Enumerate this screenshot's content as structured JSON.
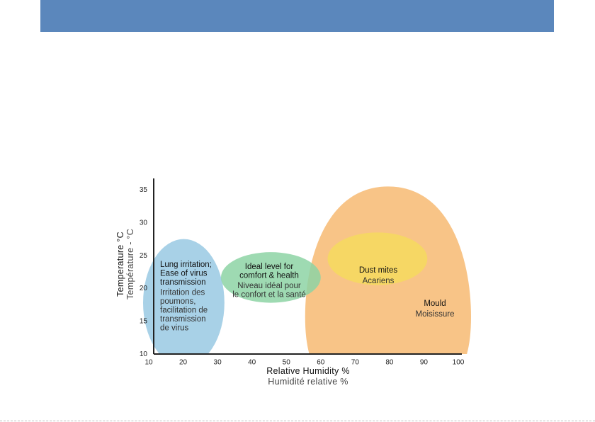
{
  "chart_data": {
    "type": "scatter",
    "title": "",
    "xlabel": "Relative Humidity %",
    "xlabel_fr": "Humidité relative %",
    "ylabel": "Temperature °C",
    "ylabel_fr": "Température - °C",
    "xlim": [
      10,
      100
    ],
    "ylim": [
      10,
      35
    ],
    "x_ticks": [
      10,
      20,
      30,
      40,
      50,
      60,
      70,
      80,
      90,
      100
    ],
    "y_ticks": [
      10,
      15,
      20,
      25,
      30,
      35
    ],
    "grid": false,
    "zones": [
      {
        "id": "lung",
        "color": "#a8d1e7",
        "humidity_range": [
          10,
          32
        ],
        "temperature_range": [
          10,
          27.5
        ],
        "label_en": [
          "Lung irritation;",
          "Ease of virus",
          "transmission"
        ],
        "label_fr": [
          "Irritation des",
          "poumons,",
          "facilitation de",
          "transmission",
          "de virus"
        ]
      },
      {
        "id": "ideal",
        "color": "#8dd3a5",
        "humidity_range": [
          31,
          60
        ],
        "temperature_range": [
          17.8,
          25.5
        ],
        "label_en": [
          "Ideal level for",
          "comfort & health"
        ],
        "label_fr": [
          "Niveau idéal pour",
          "le confort et la santé"
        ]
      },
      {
        "id": "mould",
        "color": "#f8c487",
        "humidity_range": [
          60,
          100
        ],
        "temperature_range": [
          10,
          35.5
        ],
        "label_en": [
          "Mould"
        ],
        "label_fr": [
          "Moisissure"
        ]
      },
      {
        "id": "mites",
        "color": "#f6d862",
        "humidity_range": [
          62,
          91
        ],
        "temperature_range": [
          20.5,
          28.5
        ],
        "label_en": [
          "Dust mites"
        ],
        "label_fr": [
          "Acariens"
        ]
      }
    ]
  },
  "colors": {
    "header_banner": "#5b87bc",
    "axis": "#222222"
  }
}
